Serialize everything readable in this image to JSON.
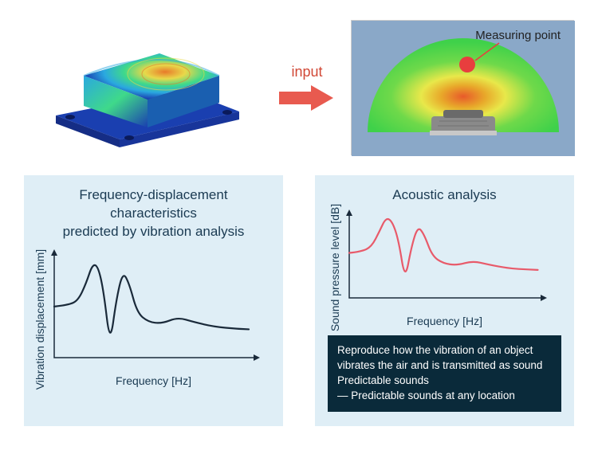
{
  "top": {
    "arrow_label": "input",
    "arrow_color": "#e85a4f",
    "measuring_label": "Measuring point",
    "measuring_dot_color": "#e83e3e",
    "fea_palette": {
      "base": "#1a3fb0",
      "mid1": "#2aa8e0",
      "mid2": "#3fd98a",
      "mid3": "#e8d84a",
      "hot": "#e87a2a"
    },
    "acoustic_palette": {
      "sky": "#8aa8c8",
      "dome_outer": "#3fd14a",
      "dome_mid": "#e8e84a",
      "dome_hot": "#e85a2a",
      "object": "#8a8a8a"
    }
  },
  "left": {
    "title": "Frequency-displacement\ncharacteristics\npredicted by vibration analysis",
    "ylabel": "Vibration displacement [mm]",
    "xlabel": "Frequency [Hz]",
    "curve_color": "#1a2a3a",
    "curve_width": 2.2,
    "axis_color": "#1a2a3a",
    "background": "#dfeef6",
    "curve_points": [
      [
        0,
        70
      ],
      [
        18,
        68
      ],
      [
        30,
        62
      ],
      [
        40,
        40
      ],
      [
        48,
        15
      ],
      [
        55,
        18
      ],
      [
        62,
        50
      ],
      [
        70,
        120
      ],
      [
        78,
        60
      ],
      [
        86,
        25
      ],
      [
        94,
        40
      ],
      [
        104,
        78
      ],
      [
        118,
        90
      ],
      [
        135,
        92
      ],
      [
        155,
        84
      ],
      [
        175,
        90
      ],
      [
        200,
        96
      ],
      [
        230,
        99
      ],
      [
        258,
        100
      ]
    ]
  },
  "right": {
    "title": "Acoustic analysis",
    "ylabel": "Sound pressure level [dB]",
    "xlabel": "Frequency [Hz]",
    "curve_color": "#e85a6a",
    "curve_width": 2.2,
    "axis_color": "#1a2a3a",
    "background": "#dfeef6",
    "curve_points": [
      [
        0,
        65
      ],
      [
        15,
        63
      ],
      [
        28,
        55
      ],
      [
        38,
        30
      ],
      [
        46,
        8
      ],
      [
        54,
        14
      ],
      [
        62,
        45
      ],
      [
        70,
        110
      ],
      [
        78,
        55
      ],
      [
        86,
        22
      ],
      [
        94,
        35
      ],
      [
        104,
        70
      ],
      [
        118,
        82
      ],
      [
        135,
        85
      ],
      [
        155,
        78
      ],
      [
        175,
        84
      ],
      [
        200,
        90
      ],
      [
        225,
        92
      ],
      [
        248,
        93
      ]
    ],
    "callout_text": "Reproduce how the vibration of an object vibrates the air and is transmitted as sound Predictable sounds\n― Predictable sounds at any location",
    "callout_bg": "#0a2a3a",
    "callout_fg": "#ffffff"
  }
}
